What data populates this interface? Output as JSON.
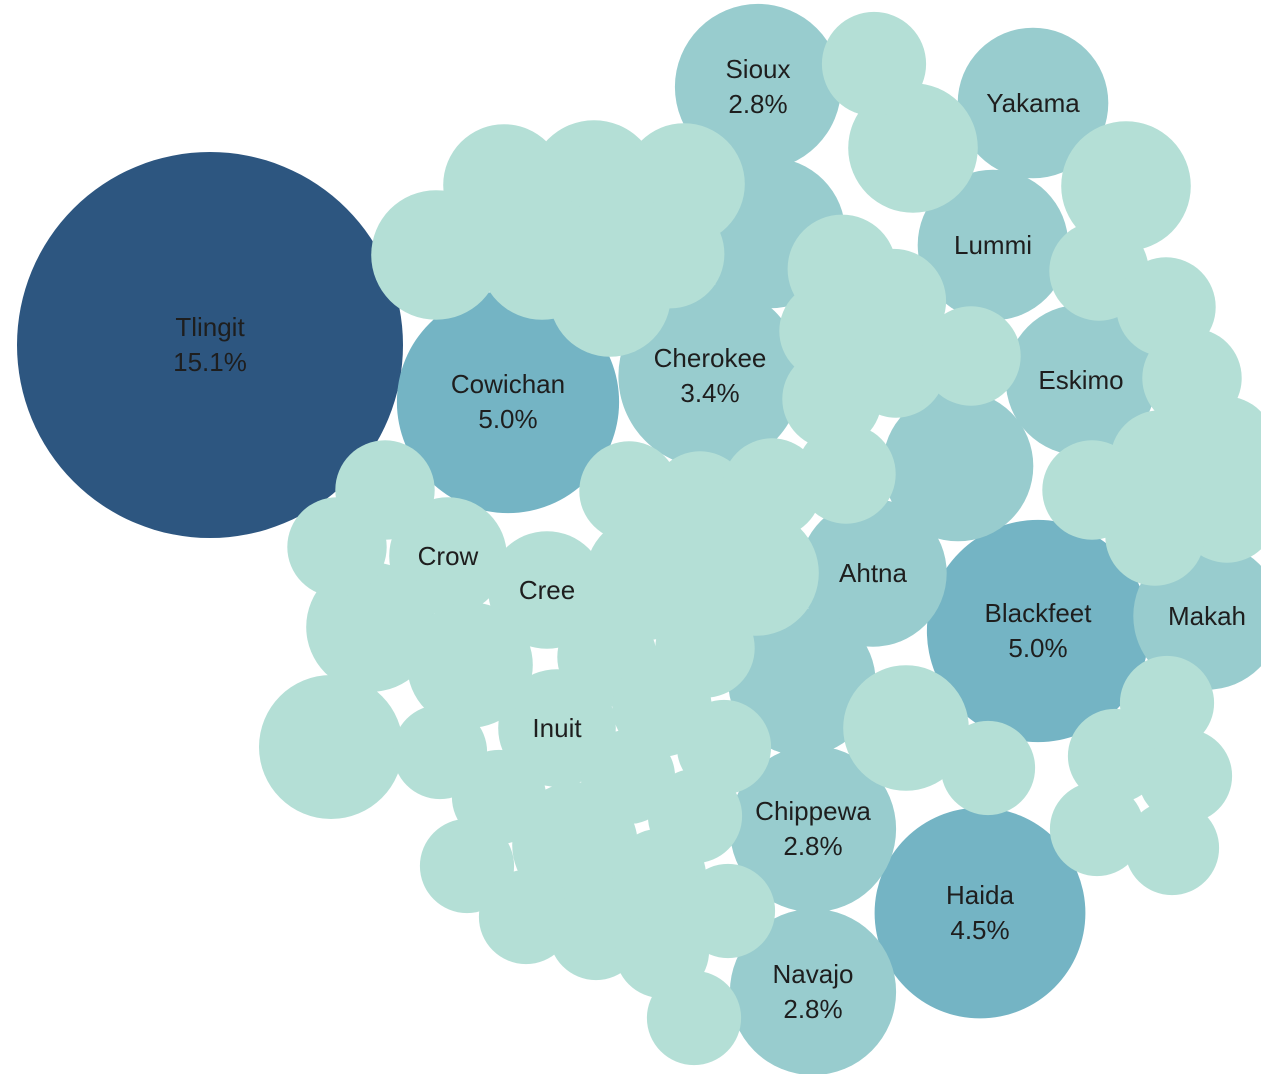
{
  "chart_data": {
    "type": "packed-bubble",
    "title": "",
    "colors": {
      "darkest": "#2d5680",
      "dark": "#74b4c4",
      "mid": "#98ccce",
      "light": "#b4dfd6"
    },
    "series": [
      {
        "name": "Tlingit",
        "value": 15.1,
        "pct_label": "15.1%"
      },
      {
        "name": "Cowichan",
        "value": 5.0,
        "pct_label": "5.0%"
      },
      {
        "name": "Blackfeet",
        "value": 5.0,
        "pct_label": "5.0%"
      },
      {
        "name": "Haida",
        "value": 4.5,
        "pct_label": "4.5%"
      },
      {
        "name": "Cherokee",
        "value": 3.4,
        "pct_label": "3.4%"
      },
      {
        "name": "Sioux",
        "value": 2.8,
        "pct_label": "2.8%"
      },
      {
        "name": "Chippewa",
        "value": 2.8,
        "pct_label": "2.8%"
      },
      {
        "name": "Navajo",
        "value": 2.8,
        "pct_label": "2.8%"
      },
      {
        "name": "Yakama",
        "value": 2.3,
        "pct_label": ""
      },
      {
        "name": "Lummi",
        "value": 2.3,
        "pct_label": ""
      },
      {
        "name": "Eskimo",
        "value": 2.3,
        "pct_label": ""
      },
      {
        "name": "Ahtna",
        "value": 2.2,
        "pct_label": ""
      },
      {
        "name": "Makah",
        "value": 2.2,
        "pct_label": ""
      },
      {
        "name": "Crow",
        "value": 1.4,
        "pct_label": ""
      },
      {
        "name": "Cree",
        "value": 1.4,
        "pct_label": ""
      },
      {
        "name": "Inuit",
        "value": 1.4,
        "pct_label": ""
      },
      {
        "name": "",
        "value": 2.3
      },
      {
        "name": "",
        "value": 2.3
      },
      {
        "name": "",
        "value": 2.1
      },
      {
        "name": "",
        "value": 2.2
      },
      {
        "name": "",
        "value": 1.7
      },
      {
        "name": "",
        "value": 1.7
      },
      {
        "name": "",
        "value": 1.7
      },
      {
        "name": "",
        "value": 1.7
      },
      {
        "name": "",
        "value": 1.7
      },
      {
        "name": "",
        "value": 1.6
      },
      {
        "name": "",
        "value": 1.6
      },
      {
        "name": "",
        "value": 1.6
      },
      {
        "name": "",
        "value": 1.6
      },
      {
        "name": "",
        "value": 1.6
      },
      {
        "name": "",
        "value": 1.6
      },
      {
        "name": "",
        "value": 1.5
      },
      {
        "name": "",
        "value": 1.5
      },
      {
        "name": "",
        "value": 1.5
      },
      {
        "name": "",
        "value": 1.2
      },
      {
        "name": "",
        "value": 1.2
      },
      {
        "name": "",
        "value": 1.1
      },
      {
        "name": "",
        "value": 1.1
      },
      {
        "name": "",
        "value": 1.0
      },
      {
        "name": "",
        "value": 1.0
      },
      {
        "name": "",
        "value": 1.0
      },
      {
        "name": "",
        "value": 1.0
      },
      {
        "name": "",
        "value": 1.0
      },
      {
        "name": "",
        "value": 1.0
      },
      {
        "name": "",
        "value": 1.0
      },
      {
        "name": "",
        "value": 1.0
      },
      {
        "name": "",
        "value": 1.0
      },
      {
        "name": "",
        "value": 1.0
      },
      {
        "name": "",
        "value": 1.0
      },
      {
        "name": "",
        "value": 1.0
      },
      {
        "name": "",
        "value": 1.0
      },
      {
        "name": "",
        "value": 1.0
      },
      {
        "name": "",
        "value": 1.0
      },
      {
        "name": "",
        "value": 1.0
      },
      {
        "name": "",
        "value": 1.0
      },
      {
        "name": "",
        "value": 1.0
      },
      {
        "name": "",
        "value": 1.0
      },
      {
        "name": "",
        "value": 1.0
      },
      {
        "name": "",
        "value": 1.0
      },
      {
        "name": "",
        "value": 0.9
      },
      {
        "name": "",
        "value": 0.9
      },
      {
        "name": "",
        "value": 0.9
      },
      {
        "name": "",
        "value": 0.9
      },
      {
        "name": "",
        "value": 0.9
      },
      {
        "name": "",
        "value": 0.9
      },
      {
        "name": "",
        "value": 0.9
      },
      {
        "name": "",
        "value": 0.9
      },
      {
        "name": "",
        "value": 0.9
      },
      {
        "name": "",
        "value": 0.9
      },
      {
        "name": "",
        "value": 0.9
      },
      {
        "name": "",
        "value": 0.9
      },
      {
        "name": "",
        "value": 0.9
      },
      {
        "name": "",
        "value": 0.9
      },
      {
        "name": "",
        "value": 0.9
      },
      {
        "name": "",
        "value": 0.9
      },
      {
        "name": "",
        "value": 0.9
      },
      {
        "name": "",
        "value": 0.9
      },
      {
        "name": "",
        "value": 0.9
      },
      {
        "name": "",
        "value": 0.9
      },
      {
        "name": "",
        "value": 0.9
      },
      {
        "name": "",
        "value": 0.9
      },
      {
        "name": "",
        "value": 0.9
      },
      {
        "name": "",
        "value": 0.9
      },
      {
        "name": "",
        "value": 0.9
      },
      {
        "name": "",
        "value": 0.9
      },
      {
        "name": "",
        "value": 0.9
      },
      {
        "name": "",
        "value": 0.9
      },
      {
        "name": "",
        "value": 0.9
      },
      {
        "name": "",
        "value": 0.9
      },
      {
        "name": "",
        "value": 0.9
      },
      {
        "name": "",
        "value": 0.9
      },
      {
        "name": "",
        "value": 0.9
      },
      {
        "name": "",
        "value": 0.9
      },
      {
        "name": "",
        "value": 0.9
      },
      {
        "name": "",
        "value": 0.9
      },
      {
        "name": "",
        "value": 0.9
      },
      {
        "name": "",
        "value": 0.9
      }
    ]
  }
}
